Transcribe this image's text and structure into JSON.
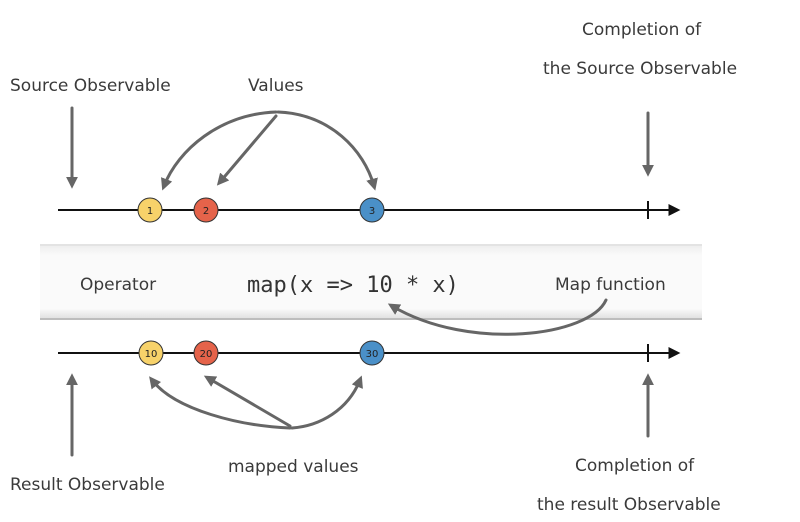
{
  "labels": {
    "source_observable": "Source Observable",
    "values": "Values",
    "completion_source_line1": "Completion of",
    "completion_source_line2": "the Source Observable",
    "operator": "Operator",
    "code": "map(x => 10 * x)",
    "map_function": "Map function",
    "result_observable": "Result Observable",
    "mapped_values": "mapped values",
    "completion_result_line1": "Completion of",
    "completion_result_line2": "the result Observable"
  },
  "source_marbles": [
    {
      "label": "1",
      "color": "#f7d26a"
    },
    {
      "label": "2",
      "color": "#e5634a"
    },
    {
      "label": "3",
      "color": "#4a90c8"
    }
  ],
  "result_marbles": [
    {
      "label": "10",
      "color": "#f7d26a"
    },
    {
      "label": "20",
      "color": "#e5634a"
    },
    {
      "label": "30",
      "color": "#4a90c8"
    }
  ]
}
